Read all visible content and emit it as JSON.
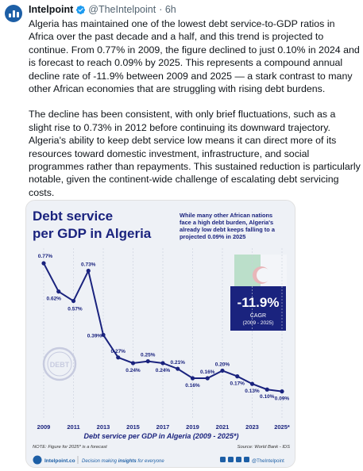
{
  "tweet": {
    "author_name": "Intelpoint",
    "handle": "@TheIntelpoint",
    "time": "· 6h",
    "paragraphs": [
      "Algeria has maintained one of the lowest debt service-to-GDP ratios in Africa over the past decade and a half, and this trend is projected to continue. From 0.77% in 2009, the figure declined to just 0.10% in 2024 and is forecast to reach 0.09% by 2025. This represents a compound annual decline rate of -11.9% between 2009 and 2025 — a stark contrast to many other African economies that are struggling with rising debt burdens.",
      "The decline has been consistent, with only brief fluctuations, such as a slight rise to 0.73% in 2012 before continuing its downward trajectory. Algeria's ability to keep debt service low means it can direct more of its resources toward domestic investment, infrastructure, and social programmes rather than repayments. This sustained reduction is particularly notable, given the continent-wide challenge of escalating debt servicing costs."
    ]
  },
  "colors": {
    "brand": "#1d5fa6",
    "chart_navy": "#1a237e",
    "line": "#1a237e"
  },
  "icons": [
    "intelpoint-logo-icon",
    "verified-badge-icon",
    "debt-stamp-icon",
    "algeria-flag-icon"
  ],
  "chart_data": {
    "type": "line",
    "title_line1": "Debt service",
    "title_line2": "per GDP in Algeria",
    "annotation_lines": [
      "While many other African nations",
      "face a high debt burden, Algeria's",
      "already low debt keeps falling to a",
      "projected 0.09% in 2025"
    ],
    "cagr_value": "-11.9%",
    "cagr_label": "CAGR",
    "cagr_period": "(2009 - 2025)",
    "x": [
      2009,
      2010,
      2011,
      2012,
      2013,
      2014,
      2015,
      2016,
      2017,
      2018,
      2019,
      2020,
      2021,
      2022,
      2023,
      2024,
      2025
    ],
    "values": [
      0.77,
      0.62,
      0.57,
      0.73,
      0.39,
      0.27,
      0.24,
      0.25,
      0.24,
      0.21,
      0.16,
      0.16,
      0.2,
      0.17,
      0.13,
      0.1,
      0.09
    ],
    "value_labels": [
      "0.77%",
      "0.62%",
      "0.57%",
      "0.73%",
      "0.39%",
      "0.27%",
      "0.24%",
      "0.25%",
      "0.24%",
      "0.21%",
      "0.16%",
      "0.16%",
      "0.20%",
      "0.17%",
      "0.13%",
      "0.10%",
      "0.09%"
    ],
    "x_tick_labels": [
      "2009",
      "2011",
      "2013",
      "2015",
      "2017",
      "2019",
      "2021",
      "2023",
      "2025*"
    ],
    "x_tick_years": [
      2009,
      2011,
      2013,
      2015,
      2017,
      2019,
      2021,
      2023,
      2025
    ],
    "xlabel": "Debt service per GDP in Algeria (2009 - 2025*)",
    "note": "NOTE: Figure for 2025* is a forecast",
    "source": "Source: World Bank - IDS",
    "footer_brand": "Intelpoint.co",
    "footer_tagline_prefix": "Decision making ",
    "footer_tagline_bold": "insights",
    "footer_tagline_suffix": " for everyone",
    "footer_handle": "@TheIntelpoint",
    "stamp_text": "DEBT",
    "ylim": [
      0,
      0.85
    ]
  }
}
